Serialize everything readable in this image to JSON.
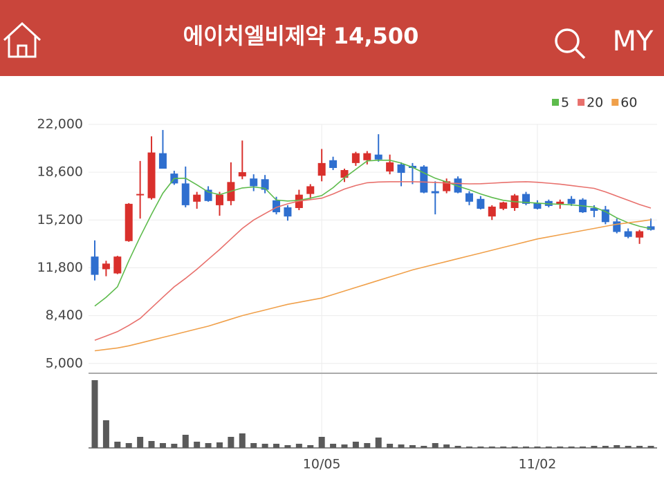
{
  "header": {
    "title": "에이치엘비제약 14,500",
    "my": "MY"
  },
  "chart_data": {
    "type": "candlestick",
    "categories": [
      null,
      null,
      null,
      null,
      null,
      null,
      null,
      null,
      null,
      null,
      null,
      null,
      null,
      null,
      null,
      null,
      null,
      null,
      null,
      null,
      "10/05",
      null,
      null,
      null,
      null,
      null,
      null,
      null,
      null,
      null,
      null,
      null,
      null,
      null,
      null,
      null,
      null,
      null,
      null,
      "11/02",
      null,
      null,
      null,
      null,
      null,
      null,
      null,
      null,
      null,
      null
    ],
    "open": [
      12600,
      11700,
      11400,
      13700,
      17000,
      16750,
      19950,
      18500,
      17800,
      16500,
      17350,
      16250,
      16550,
      18300,
      18150,
      18100,
      16600,
      16100,
      16050,
      17050,
      18350,
      19450,
      18200,
      19250,
      19450,
      19850,
      18650,
      19150,
      19050,
      19000,
      17250,
      17250,
      18150,
      17100,
      16700,
      15450,
      16000,
      16050,
      17050,
      16400,
      16550,
      16300,
      16700,
      16650,
      16050,
      15950,
      15100,
      14400,
      13950,
      14750
    ],
    "high": [
      13750,
      12300,
      12650,
      16400,
      19400,
      21150,
      21600,
      18700,
      19000,
      17200,
      17600,
      17200,
      19300,
      20850,
      18450,
      18400,
      16850,
      16250,
      17350,
      17750,
      20250,
      19700,
      18850,
      20050,
      20100,
      21300,
      19850,
      19300,
      19250,
      19100,
      17950,
      18150,
      18300,
      17250,
      16900,
      16250,
      16500,
      17050,
      17200,
      16600,
      16650,
      16650,
      16900,
      16750,
      16250,
      16200,
      15300,
      14600,
      14500,
      15300
    ],
    "low": [
      10900,
      11200,
      11350,
      13650,
      15300,
      16650,
      18850,
      17700,
      16100,
      16000,
      16500,
      15500,
      16250,
      18100,
      17250,
      17100,
      15600,
      15150,
      15900,
      16700,
      17950,
      18750,
      17900,
      19050,
      19150,
      19350,
      18450,
      17600,
      17750,
      17100,
      15600,
      17100,
      17100,
      16250,
      15950,
      15200,
      15900,
      15850,
      16250,
      15950,
      16100,
      16000,
      16200,
      15700,
      15400,
      14900,
      14250,
      13900,
      13500,
      14450
    ],
    "close": [
      11300,
      12100,
      12600,
      16350,
      17050,
      20000,
      18850,
      17800,
      16250,
      17000,
      16550,
      17000,
      17900,
      18600,
      17600,
      17350,
      15750,
      15450,
      17000,
      17600,
      19250,
      18900,
      18750,
      19950,
      19950,
      19500,
      19300,
      18550,
      18900,
      17150,
      17100,
      17950,
      17150,
      16500,
      16000,
      16150,
      16450,
      16950,
      16350,
      16000,
      16200,
      16500,
      16350,
      15750,
      15850,
      15050,
      14350,
      14000,
      14400,
      14500
    ],
    "up_color": "#d9302c",
    "down_color": "#2f6fcf",
    "series": [
      {
        "name": "5",
        "color": "#5dbb4c",
        "values": [
          9080,
          9700,
          10450,
          12300,
          14000,
          15600,
          17100,
          18150,
          18170,
          17700,
          17190,
          17000,
          17250,
          17480,
          17550,
          17450,
          16620,
          16550,
          16600,
          16750,
          16940,
          17500,
          18200,
          18800,
          19400,
          19450,
          19450,
          19250,
          18950,
          18550,
          18170,
          17900,
          17600,
          17350,
          17050,
          16800,
          16600,
          16500,
          16450,
          16400,
          16350,
          16320,
          16280,
          16200,
          16110,
          15800,
          15350,
          15000,
          14750,
          14580
        ]
      },
      {
        "name": "20",
        "color": "#e8706c",
        "values": [
          6650,
          6950,
          7260,
          7700,
          8200,
          8950,
          9700,
          10450,
          11050,
          11700,
          12400,
          13100,
          13850,
          14600,
          15200,
          15650,
          16100,
          16350,
          16550,
          16650,
          16750,
          17050,
          17400,
          17650,
          17850,
          17900,
          17920,
          17920,
          17920,
          17900,
          17870,
          17830,
          17800,
          17770,
          17780,
          17820,
          17860,
          17900,
          17920,
          17880,
          17820,
          17750,
          17650,
          17550,
          17450,
          17200,
          16900,
          16600,
          16300,
          16050
        ]
      },
      {
        "name": "60",
        "color": "#f0a04a",
        "values": [
          5900,
          6000,
          6100,
          6250,
          6450,
          6650,
          6850,
          7050,
          7250,
          7450,
          7650,
          7900,
          8150,
          8400,
          8600,
          8800,
          9000,
          9200,
          9350,
          9500,
          9650,
          9900,
          10150,
          10400,
          10650,
          10900,
          11150,
          11400,
          11650,
          11850,
          12050,
          12250,
          12450,
          12650,
          12850,
          13050,
          13250,
          13450,
          13650,
          13850,
          14000,
          14150,
          14300,
          14450,
          14600,
          14750,
          14900,
          15000,
          15100,
          15220
        ]
      }
    ],
    "volume": [
      98,
      40,
      9,
      7,
      16,
      10,
      7,
      6,
      19,
      9,
      7,
      8,
      16,
      21,
      7,
      6,
      6,
      4,
      6,
      4,
      16,
      6,
      5,
      9,
      7,
      15,
      6,
      5,
      4,
      3,
      7,
      5,
      3,
      2,
      2,
      2,
      2,
      2,
      2,
      2,
      2,
      2,
      2,
      2,
      3,
      3,
      4,
      3,
      3,
      3
    ],
    "volume_color": "#5a5a5a",
    "ylim": [
      4300,
      24700
    ],
    "yticks": [
      {
        "value": 5000,
        "label": "5,000"
      },
      {
        "value": 8400,
        "label": "8,400"
      },
      {
        "value": 11800,
        "label": "11,800"
      },
      {
        "value": 15200,
        "label": "15,200"
      },
      {
        "value": 18600,
        "label": "18,600"
      },
      {
        "value": 22000,
        "label": "22,000"
      }
    ],
    "grid": true
  }
}
